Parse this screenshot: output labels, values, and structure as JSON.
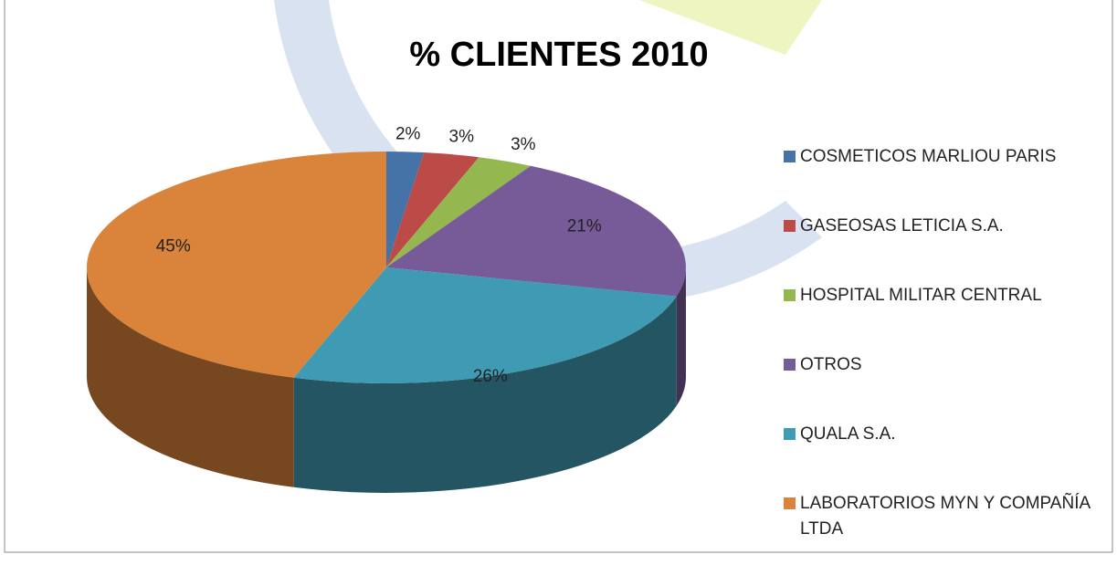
{
  "chart_data": {
    "type": "pie",
    "title": "% CLIENTES 2010",
    "categories": [
      "COSMETICOS MARLIOU PARIS",
      "GASEOSAS LETICIA S.A.",
      "HOSPITAL MILITAR CENTRAL",
      "OTROS",
      "QUALA S.A.",
      "LABORATORIOS MYN Y COMPAÑÍA LTDA"
    ],
    "values": [
      2,
      3,
      3,
      21,
      26,
      45
    ],
    "value_labels": [
      "2%",
      "3%",
      "3%",
      "21%",
      "26%",
      "45%"
    ],
    "colors": [
      "#4572a7",
      "#bc4a47",
      "#94b74f",
      "#775a98",
      "#3f9bb4",
      "#d9833b"
    ],
    "legend": "right"
  }
}
